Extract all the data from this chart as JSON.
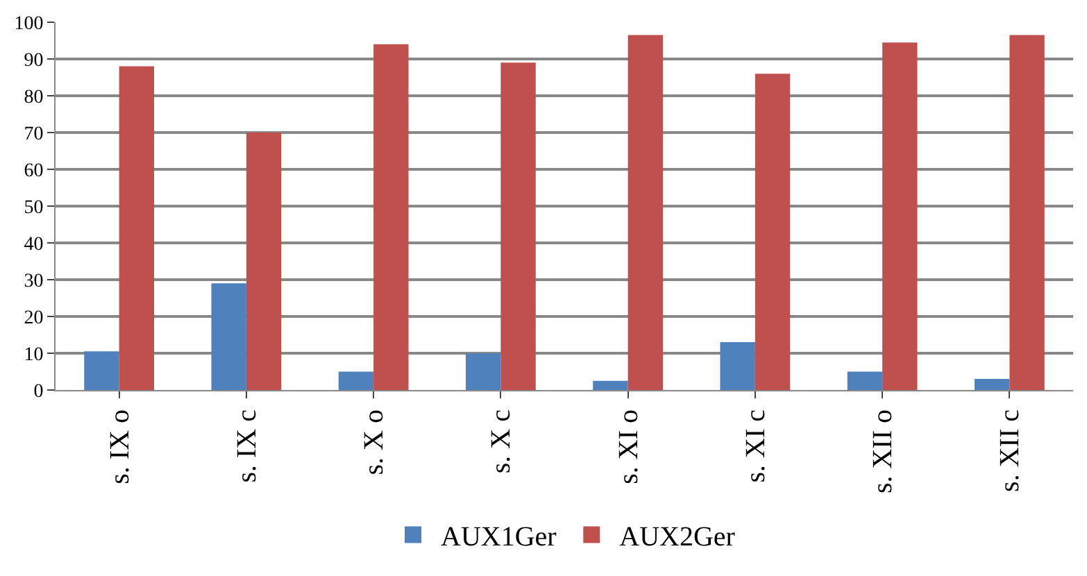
{
  "chart_data": {
    "type": "bar",
    "categories": [
      "s. IX o",
      "s. IX c",
      "s. X o",
      "s. X c",
      "s. XI o",
      "s. XI c",
      "s. XII o",
      "s. XII c"
    ],
    "series": [
      {
        "name": "AUX1Ger",
        "color": "#4f81bd",
        "values": [
          10.5,
          29,
          5,
          10,
          2.5,
          13,
          5,
          3
        ]
      },
      {
        "name": "AUX2Ger",
        "color": "#c0504d",
        "values": [
          88,
          70,
          94,
          89,
          96.5,
          86,
          94.5,
          96.5
        ]
      }
    ],
    "ylim": [
      0,
      100
    ],
    "yticks": [
      0,
      10,
      20,
      30,
      40,
      50,
      60,
      70,
      80,
      90,
      100
    ],
    "grid": "y",
    "legend": "bottom"
  }
}
